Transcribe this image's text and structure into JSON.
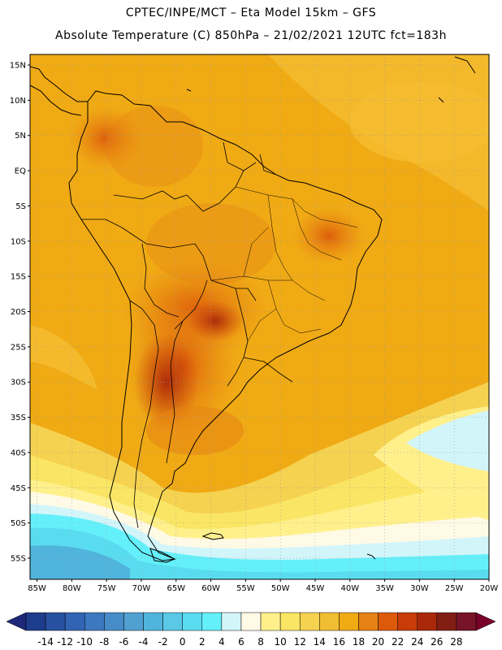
{
  "header": {
    "line1": "CPTEC/INPE/MCT –  Eta Model 15km – GFS",
    "line2": "Absolute Temperature (C) 850hPa – 21/02/2021 12UTC fct=183h"
  },
  "map": {
    "lat_labels": [
      "15N",
      "10N",
      "5N",
      "EQ",
      "5S",
      "10S",
      "15S",
      "20S",
      "25S",
      "30S",
      "35S",
      "40S",
      "45S",
      "50S",
      "55S"
    ],
    "lat_values": [
      15,
      10,
      5,
      0,
      -5,
      -10,
      -15,
      -20,
      -25,
      -30,
      -35,
      -40,
      -45,
      -50,
      -55
    ],
    "lon_labels": [
      "85W",
      "80W",
      "75W",
      "70W",
      "65W",
      "60W",
      "55W",
      "50W",
      "45W",
      "40W",
      "35W",
      "30W",
      "25W",
      "20W"
    ],
    "lon_values": [
      -85,
      -80,
      -75,
      -70,
      -65,
      -60,
      -55,
      -50,
      -45,
      -40,
      -35,
      -30,
      -25,
      -20
    ],
    "lat_range": [
      -58,
      16.5
    ],
    "lon_range": [
      -86,
      -20
    ],
    "gridlines": true,
    "background_color": "#f0ac12"
  },
  "colorbar": {
    "labels": [
      "-14",
      "-12",
      "-10",
      "-8",
      "-6",
      "-4",
      "-2",
      "0",
      "2",
      "4",
      "6",
      "8",
      "10",
      "12",
      "14",
      "16",
      "18",
      "20",
      "22",
      "24",
      "26",
      "28"
    ],
    "colors": [
      "#1e3c8c",
      "#2850a0",
      "#3264b4",
      "#3c78c0",
      "#468cc8",
      "#50a0d2",
      "#50b4dc",
      "#5ac8e6",
      "#5adcf0",
      "#64f0fa",
      "#d2f5fa",
      "#fffae6",
      "#fff08c",
      "#fae664",
      "#f5d250",
      "#f0be32",
      "#f0aa14",
      "#e68214",
      "#dc5a0a",
      "#c83c0a",
      "#aa280a",
      "#821e14",
      "#781428"
    ],
    "low_arrow_color": "#1e2878",
    "high_arrow_color": "#780028"
  }
}
